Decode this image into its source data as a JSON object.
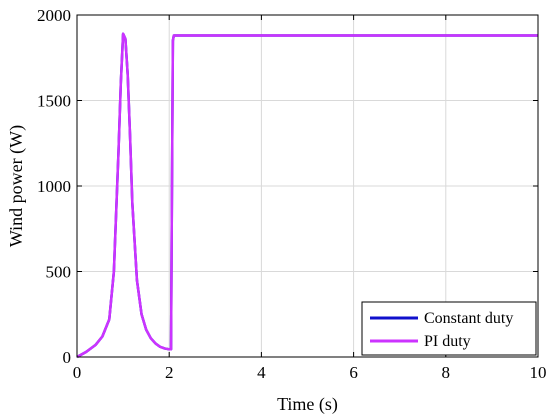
{
  "chart_data": {
    "type": "line",
    "xlabel": "Time (s)",
    "ylabel": "Wind power (W)",
    "xlim": [
      0,
      10
    ],
    "ylim": [
      0,
      2000
    ],
    "xticks": [
      "0",
      "2",
      "4",
      "6",
      "8",
      "10"
    ],
    "yticks": [
      "0",
      "500",
      "1000",
      "1500",
      "2000"
    ],
    "grid": true,
    "legend_position": "bottom-right",
    "series": [
      {
        "name": "Constant duty",
        "color": "#1010cc",
        "x": [
          0,
          0.2,
          0.4,
          0.55,
          0.7,
          0.8,
          0.9,
          0.95,
          1.0,
          1.05,
          1.1,
          1.15,
          1.2,
          1.3,
          1.4,
          1.5,
          1.6,
          1.7,
          1.8,
          1.9,
          2.0,
          2.04,
          2.06,
          2.08,
          2.1,
          2.2,
          3,
          4,
          5,
          6,
          7,
          8,
          9,
          10
        ],
        "y": [
          0,
          30,
          70,
          120,
          220,
          500,
          1200,
          1600,
          1890,
          1860,
          1650,
          1300,
          900,
          450,
          250,
          160,
          110,
          80,
          60,
          50,
          45,
          45,
          1000,
          1850,
          1880,
          1880,
          1880,
          1880,
          1880,
          1880,
          1880,
          1880,
          1880,
          1880
        ]
      },
      {
        "name": "PI duty",
        "color": "#cc33ff",
        "x": [
          0,
          0.2,
          0.4,
          0.55,
          0.7,
          0.8,
          0.9,
          0.95,
          1.0,
          1.05,
          1.1,
          1.15,
          1.2,
          1.3,
          1.4,
          1.5,
          1.6,
          1.7,
          1.8,
          1.9,
          2.0,
          2.04,
          2.06,
          2.08,
          2.1,
          2.2,
          3,
          4,
          5,
          6,
          7,
          8,
          9,
          10
        ],
        "y": [
          0,
          30,
          70,
          120,
          220,
          500,
          1200,
          1600,
          1890,
          1860,
          1650,
          1300,
          900,
          450,
          250,
          160,
          110,
          80,
          60,
          50,
          45,
          45,
          1000,
          1850,
          1880,
          1880,
          1880,
          1880,
          1880,
          1880,
          1880,
          1880,
          1880,
          1880
        ]
      }
    ]
  }
}
